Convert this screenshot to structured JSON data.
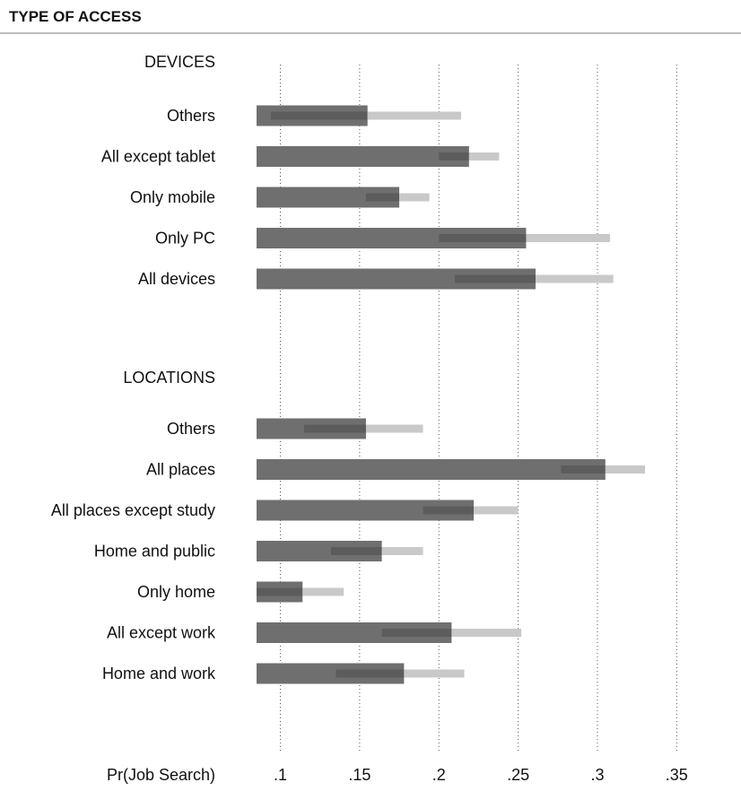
{
  "chart_data": {
    "type": "bar",
    "orientation": "horizontal",
    "title": "TYPE OF ACCESS",
    "xlabel": "Pr(Job Search)",
    "xlim": [
      0.085,
      0.36
    ],
    "xticks": [
      0.1,
      0.15,
      0.2,
      0.25,
      0.3,
      0.35
    ],
    "xtick_labels": [
      ".1",
      ".15",
      ".2",
      ".25",
      ".3",
      ".35"
    ],
    "grid": "vertical dotted",
    "colors": {
      "estimate": "#6f6f6f",
      "interval": "#c9c9c9"
    },
    "groups": [
      {
        "name": "DEVICES",
        "rows": [
          {
            "label": "Others",
            "value": 0.155,
            "ci": [
              0.094,
              0.214
            ]
          },
          {
            "label": "All except tablet",
            "value": 0.219,
            "ci": [
              0.2,
              0.238
            ]
          },
          {
            "label": "Only mobile",
            "value": 0.175,
            "ci": [
              0.154,
              0.194
            ]
          },
          {
            "label": "Only PC",
            "value": 0.255,
            "ci": [
              0.2,
              0.308
            ]
          },
          {
            "label": "All devices",
            "value": 0.261,
            "ci": [
              0.21,
              0.31
            ]
          }
        ]
      },
      {
        "name": "LOCATIONS",
        "rows": [
          {
            "label": "Others",
            "value": 0.154,
            "ci": [
              0.115,
              0.19
            ]
          },
          {
            "label": "All places",
            "value": 0.305,
            "ci": [
              0.277,
              0.33
            ]
          },
          {
            "label": "All places except study",
            "value": 0.222,
            "ci": [
              0.19,
              0.25
            ]
          },
          {
            "label": "Home and public",
            "value": 0.164,
            "ci": [
              0.132,
              0.19
            ]
          },
          {
            "label": "Only home",
            "value": 0.114,
            "ci": [
              0.085,
              0.14
            ]
          },
          {
            "label": "All except work",
            "value": 0.208,
            "ci": [
              0.164,
              0.252
            ]
          },
          {
            "label": "Home and work",
            "value": 0.178,
            "ci": [
              0.135,
              0.216
            ]
          }
        ]
      }
    ]
  }
}
